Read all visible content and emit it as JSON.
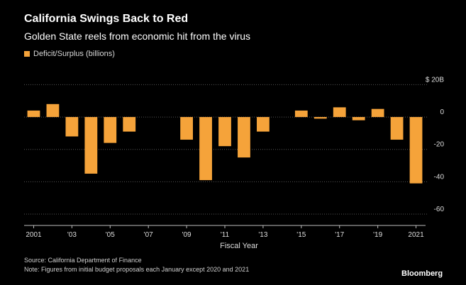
{
  "header": {
    "title": "California Swings Back to Red",
    "subtitle": "Golden State reels from economic hit from the virus"
  },
  "footer": {
    "source": "Source: California Department of Finance",
    "note": "Note: Figures from initial budget proposals each January except 2020 and 2021",
    "logo": "Bloomberg"
  },
  "colors": {
    "background": "#000000",
    "bar": "#f5a33a",
    "gridline": "#555555",
    "text": "#ffffff"
  },
  "chart_data": {
    "type": "bar",
    "title": "California Swings Back to Red",
    "subtitle": "Golden State reels from economic hit from the virus",
    "xlabel": "Fiscal Year",
    "ylabel": "",
    "legend": {
      "entry": "Deficit/Surplus (billions)",
      "placement": "top-left"
    },
    "ylim": [
      -67,
      25
    ],
    "grid": true,
    "yticks": [
      {
        "value": 20,
        "label": "$ 20B"
      },
      {
        "value": 0,
        "label": "0"
      },
      {
        "value": -20,
        "label": "-20"
      },
      {
        "value": -40,
        "label": "-40"
      },
      {
        "value": -60,
        "label": "-60"
      }
    ],
    "xticks": [
      {
        "year": 2001,
        "label": "2001"
      },
      {
        "year": 2003,
        "label": "'03"
      },
      {
        "year": 2005,
        "label": "'05"
      },
      {
        "year": 2007,
        "label": "'07"
      },
      {
        "year": 2009,
        "label": "'09"
      },
      {
        "year": 2011,
        "label": "'11"
      },
      {
        "year": 2013,
        "label": "'13"
      },
      {
        "year": 2015,
        "label": "'15"
      },
      {
        "year": 2017,
        "label": "'17"
      },
      {
        "year": 2019,
        "label": "'19"
      },
      {
        "year": 2021,
        "label": "2021"
      }
    ],
    "series": [
      {
        "name": "Deficit/Surplus (billions)",
        "x": [
          2001,
          2002,
          2003,
          2004,
          2005,
          2006,
          2007,
          2008,
          2009,
          2010,
          2011,
          2012,
          2013,
          2014,
          2015,
          2016,
          2017,
          2018,
          2019,
          2020,
          2021
        ],
        "values": [
          4,
          8,
          -12,
          -35,
          -16,
          -9,
          0,
          0,
          -14,
          -39,
          -18,
          -25,
          -9,
          0,
          4,
          -1,
          6,
          -2,
          5,
          -14,
          -41
        ]
      }
    ]
  }
}
